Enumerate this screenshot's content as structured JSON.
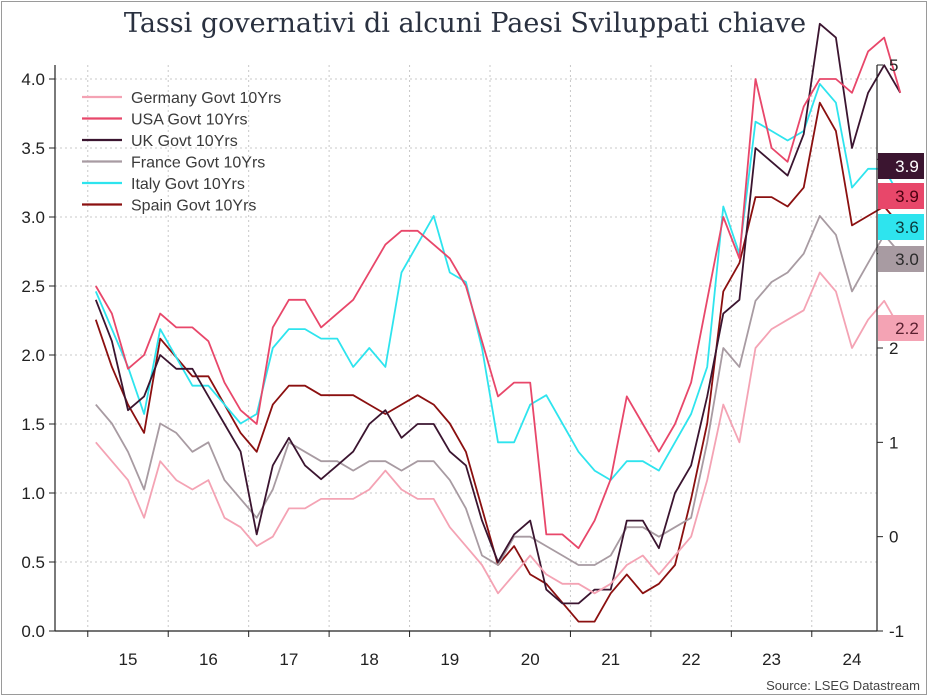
{
  "title": "Tassi governativi di alcuni Paesi Sviluppati chiave",
  "source": "Source: LSEG Datastream",
  "chart_data": {
    "type": "line",
    "grid": true,
    "legend_position": "top-left",
    "x_tick_labels": [
      "15",
      "16",
      "17",
      "18",
      "19",
      "20",
      "21",
      "22",
      "23",
      "24"
    ],
    "x_range": [
      2014.6,
      2024.6
    ],
    "y_left": {
      "range": [
        0,
        4
      ],
      "ticks": [
        0.0,
        0.5,
        1.0,
        1.5,
        2.0,
        2.5,
        3.0,
        3.5,
        4.0
      ],
      "tick_labels": [
        "0.0",
        "0.5",
        "1.0",
        "1.5",
        "2.0",
        "2.5",
        "3.0",
        "3.5",
        "4.0"
      ]
    },
    "y_right": {
      "range": [
        -1,
        5
      ],
      "ticks": [
        -1,
        0,
        1,
        2,
        3,
        4,
        5
      ],
      "tick_labels": [
        "-1",
        "0",
        "1",
        "2",
        "3",
        "4",
        "5"
      ]
    },
    "series": [
      {
        "name": "Germany Govt 10Yrs",
        "color": "#f4a3b4",
        "axis": "right",
        "last_label": "2.2",
        "x": [
          2014.6,
          2014.8,
          2015.0,
          2015.2,
          2015.4,
          2015.6,
          2015.8,
          2016.0,
          2016.2,
          2016.4,
          2016.6,
          2016.8,
          2017.0,
          2017.2,
          2017.4,
          2017.6,
          2017.8,
          2018.0,
          2018.2,
          2018.4,
          2018.6,
          2018.8,
          2019.0,
          2019.2,
          2019.4,
          2019.6,
          2019.8,
          2020.0,
          2020.2,
          2020.4,
          2020.6,
          2020.8,
          2021.0,
          2021.2,
          2021.4,
          2021.6,
          2021.8,
          2022.0,
          2022.2,
          2022.4,
          2022.6,
          2022.8,
          2023.0,
          2023.2,
          2023.4,
          2023.6,
          2023.8,
          2024.0,
          2024.2,
          2024.4,
          2024.6
        ],
        "y": [
          1.0,
          0.8,
          0.6,
          0.2,
          0.8,
          0.6,
          0.5,
          0.6,
          0.2,
          0.1,
          -0.1,
          0.0,
          0.3,
          0.3,
          0.4,
          0.4,
          0.4,
          0.5,
          0.7,
          0.5,
          0.4,
          0.4,
          0.1,
          -0.1,
          -0.3,
          -0.6,
          -0.4,
          -0.2,
          -0.4,
          -0.5,
          -0.5,
          -0.6,
          -0.5,
          -0.3,
          -0.2,
          -0.4,
          -0.2,
          0.0,
          0.6,
          1.4,
          1.0,
          2.0,
          2.2,
          2.3,
          2.4,
          2.8,
          2.6,
          2.0,
          2.3,
          2.5,
          2.2
        ]
      },
      {
        "name": "USA Govt 10Yrs",
        "color": "#e8476a",
        "axis": "left",
        "last_label": "3.9",
        "x": [
          2014.6,
          2014.8,
          2015.0,
          2015.2,
          2015.4,
          2015.6,
          2015.8,
          2016.0,
          2016.2,
          2016.4,
          2016.6,
          2016.8,
          2017.0,
          2017.2,
          2017.4,
          2017.6,
          2017.8,
          2018.0,
          2018.2,
          2018.4,
          2018.6,
          2018.8,
          2019.0,
          2019.2,
          2019.4,
          2019.6,
          2019.8,
          2020.0,
          2020.2,
          2020.4,
          2020.6,
          2020.8,
          2021.0,
          2021.2,
          2021.4,
          2021.6,
          2021.8,
          2022.0,
          2022.2,
          2022.4,
          2022.6,
          2022.8,
          2023.0,
          2023.2,
          2023.4,
          2023.6,
          2023.8,
          2024.0,
          2024.2,
          2024.4,
          2024.6
        ],
        "y": [
          2.5,
          2.3,
          1.9,
          2.0,
          2.3,
          2.2,
          2.2,
          2.1,
          1.8,
          1.6,
          1.5,
          2.2,
          2.4,
          2.4,
          2.2,
          2.3,
          2.4,
          2.6,
          2.8,
          2.9,
          2.9,
          2.8,
          2.7,
          2.5,
          2.1,
          1.7,
          1.8,
          1.8,
          0.7,
          0.7,
          0.6,
          0.8,
          1.1,
          1.7,
          1.5,
          1.3,
          1.5,
          1.8,
          2.4,
          3.0,
          2.7,
          4.0,
          3.5,
          3.4,
          3.8,
          4.0,
          4.0,
          3.9,
          4.2,
          4.3,
          3.9
        ]
      },
      {
        "name": "UK Govt 10Yrs",
        "color": "#3b1530",
        "axis": "left",
        "last_label": "3.9",
        "x": [
          2014.6,
          2014.8,
          2015.0,
          2015.2,
          2015.4,
          2015.6,
          2015.8,
          2016.0,
          2016.2,
          2016.4,
          2016.6,
          2016.8,
          2017.0,
          2017.2,
          2017.4,
          2017.6,
          2017.8,
          2018.0,
          2018.2,
          2018.4,
          2018.6,
          2018.8,
          2019.0,
          2019.2,
          2019.4,
          2019.6,
          2019.8,
          2020.0,
          2020.2,
          2020.4,
          2020.6,
          2020.8,
          2021.0,
          2021.2,
          2021.4,
          2021.6,
          2021.8,
          2022.0,
          2022.2,
          2022.4,
          2022.6,
          2022.8,
          2023.0,
          2023.2,
          2023.4,
          2023.6,
          2023.8,
          2024.0,
          2024.2,
          2024.4,
          2024.6
        ],
        "y": [
          2.4,
          2.1,
          1.6,
          1.7,
          2.0,
          1.9,
          1.9,
          1.7,
          1.5,
          1.3,
          0.7,
          1.2,
          1.4,
          1.2,
          1.1,
          1.2,
          1.3,
          1.5,
          1.6,
          1.4,
          1.5,
          1.5,
          1.3,
          1.2,
          0.8,
          0.5,
          0.7,
          0.8,
          0.3,
          0.2,
          0.2,
          0.3,
          0.3,
          0.8,
          0.8,
          0.6,
          1.0,
          1.2,
          1.7,
          2.3,
          2.4,
          3.5,
          3.4,
          3.3,
          3.6,
          4.4,
          4.3,
          3.5,
          3.9,
          4.1,
          3.9
        ]
      },
      {
        "name": "France Govt 10Yrs",
        "color": "#a89ba2",
        "axis": "right",
        "last_label": "3.0",
        "x": [
          2014.6,
          2014.8,
          2015.0,
          2015.2,
          2015.4,
          2015.6,
          2015.8,
          2016.0,
          2016.2,
          2016.4,
          2016.6,
          2016.8,
          2017.0,
          2017.2,
          2017.4,
          2017.6,
          2017.8,
          2018.0,
          2018.2,
          2018.4,
          2018.6,
          2018.8,
          2019.0,
          2019.2,
          2019.4,
          2019.6,
          2019.8,
          2020.0,
          2020.2,
          2020.4,
          2020.6,
          2020.8,
          2021.0,
          2021.2,
          2021.4,
          2021.6,
          2021.8,
          2022.0,
          2022.2,
          2022.4,
          2022.6,
          2022.8,
          2023.0,
          2023.2,
          2023.4,
          2023.6,
          2023.8,
          2024.0,
          2024.2,
          2024.4,
          2024.6
        ],
        "y": [
          1.4,
          1.2,
          0.9,
          0.5,
          1.2,
          1.1,
          0.9,
          1.0,
          0.6,
          0.4,
          0.2,
          0.5,
          1.0,
          0.9,
          0.8,
          0.8,
          0.7,
          0.8,
          0.8,
          0.7,
          0.8,
          0.8,
          0.6,
          0.3,
          -0.2,
          -0.3,
          0.0,
          0.0,
          -0.1,
          -0.2,
          -0.3,
          -0.3,
          -0.2,
          0.1,
          0.1,
          0.0,
          0.1,
          0.2,
          1.0,
          2.0,
          1.8,
          2.5,
          2.7,
          2.8,
          3.0,
          3.4,
          3.2,
          2.6,
          2.9,
          3.2,
          3.0
        ]
      },
      {
        "name": "Italy Govt 10Yrs",
        "color": "#2ee4ee",
        "axis": "right",
        "last_label": "3.6",
        "x": [
          2014.6,
          2014.8,
          2015.0,
          2015.2,
          2015.4,
          2015.6,
          2015.8,
          2016.0,
          2016.2,
          2016.4,
          2016.6,
          2016.8,
          2017.0,
          2017.2,
          2017.4,
          2017.6,
          2017.8,
          2018.0,
          2018.2,
          2018.4,
          2018.6,
          2018.8,
          2019.0,
          2019.2,
          2019.4,
          2019.6,
          2019.8,
          2020.0,
          2020.2,
          2020.4,
          2020.6,
          2020.8,
          2021.0,
          2021.2,
          2021.4,
          2021.6,
          2021.8,
          2022.0,
          2022.2,
          2022.4,
          2022.6,
          2022.8,
          2023.0,
          2023.2,
          2023.4,
          2023.6,
          2023.8,
          2024.0,
          2024.2,
          2024.4,
          2024.6
        ],
        "y": [
          2.6,
          2.2,
          1.8,
          1.3,
          2.2,
          1.9,
          1.6,
          1.6,
          1.4,
          1.2,
          1.3,
          2.0,
          2.2,
          2.2,
          2.1,
          2.1,
          1.8,
          2.0,
          1.8,
          2.8,
          3.1,
          3.4,
          2.8,
          2.7,
          2.0,
          1.0,
          1.0,
          1.4,
          1.5,
          1.2,
          0.9,
          0.7,
          0.6,
          0.8,
          0.8,
          0.7,
          1.0,
          1.3,
          1.8,
          3.5,
          3.0,
          4.4,
          4.3,
          4.2,
          4.3,
          4.8,
          4.6,
          3.7,
          3.9,
          3.9,
          3.6
        ]
      },
      {
        "name": "Spain Govt 10Yrs",
        "color": "#8b1010",
        "axis": "right",
        "last_label": null,
        "x": [
          2014.6,
          2014.8,
          2015.0,
          2015.2,
          2015.4,
          2015.6,
          2015.8,
          2016.0,
          2016.2,
          2016.4,
          2016.6,
          2016.8,
          2017.0,
          2017.2,
          2017.4,
          2017.6,
          2017.8,
          2018.0,
          2018.2,
          2018.4,
          2018.6,
          2018.8,
          2019.0,
          2019.2,
          2019.4,
          2019.6,
          2019.8,
          2020.0,
          2020.2,
          2020.4,
          2020.6,
          2020.8,
          2021.0,
          2021.2,
          2021.4,
          2021.6,
          2021.8,
          2022.0,
          2022.2,
          2022.4,
          2022.6,
          2022.8,
          2023.0,
          2023.2,
          2023.4,
          2023.6,
          2023.8,
          2024.0,
          2024.2,
          2024.4,
          2024.6
        ],
        "y": [
          2.3,
          1.8,
          1.4,
          1.1,
          2.1,
          1.9,
          1.7,
          1.7,
          1.4,
          1.1,
          0.9,
          1.4,
          1.6,
          1.6,
          1.5,
          1.5,
          1.5,
          1.4,
          1.3,
          1.4,
          1.5,
          1.4,
          1.2,
          0.9,
          0.3,
          -0.3,
          -0.1,
          -0.4,
          -0.5,
          -0.7,
          -0.9,
          -0.9,
          -0.6,
          -0.4,
          -0.6,
          -0.5,
          -0.3,
          0.4,
          1.2,
          2.6,
          2.9,
          3.6,
          3.6,
          3.5,
          3.7,
          4.6,
          4.3,
          3.3,
          3.4,
          3.5,
          3.3
        ]
      }
    ]
  }
}
